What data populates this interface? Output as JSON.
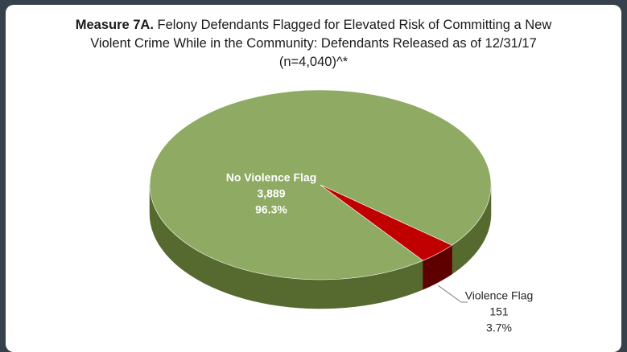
{
  "chart_data": {
    "type": "pie3d",
    "title_bold": "Measure 7A.",
    "title": "Felony Defendants Flagged for Elevated Risk of Committing a New Violent Crime While in the Community: Defendants Released as of 12/31/17 (n=4,040)^*",
    "categories": [
      "No Violence Flag",
      "Violence Flag"
    ],
    "values": [
      3889,
      151
    ],
    "value_labels": [
      "3,889",
      "151"
    ],
    "percents": [
      96.3,
      3.7
    ],
    "percent_labels": [
      "96.3%",
      "3.7%"
    ],
    "colors": [
      "#8faa62",
      "#c00000"
    ],
    "side_colors": [
      "#56692f",
      "#5e0000"
    ]
  }
}
